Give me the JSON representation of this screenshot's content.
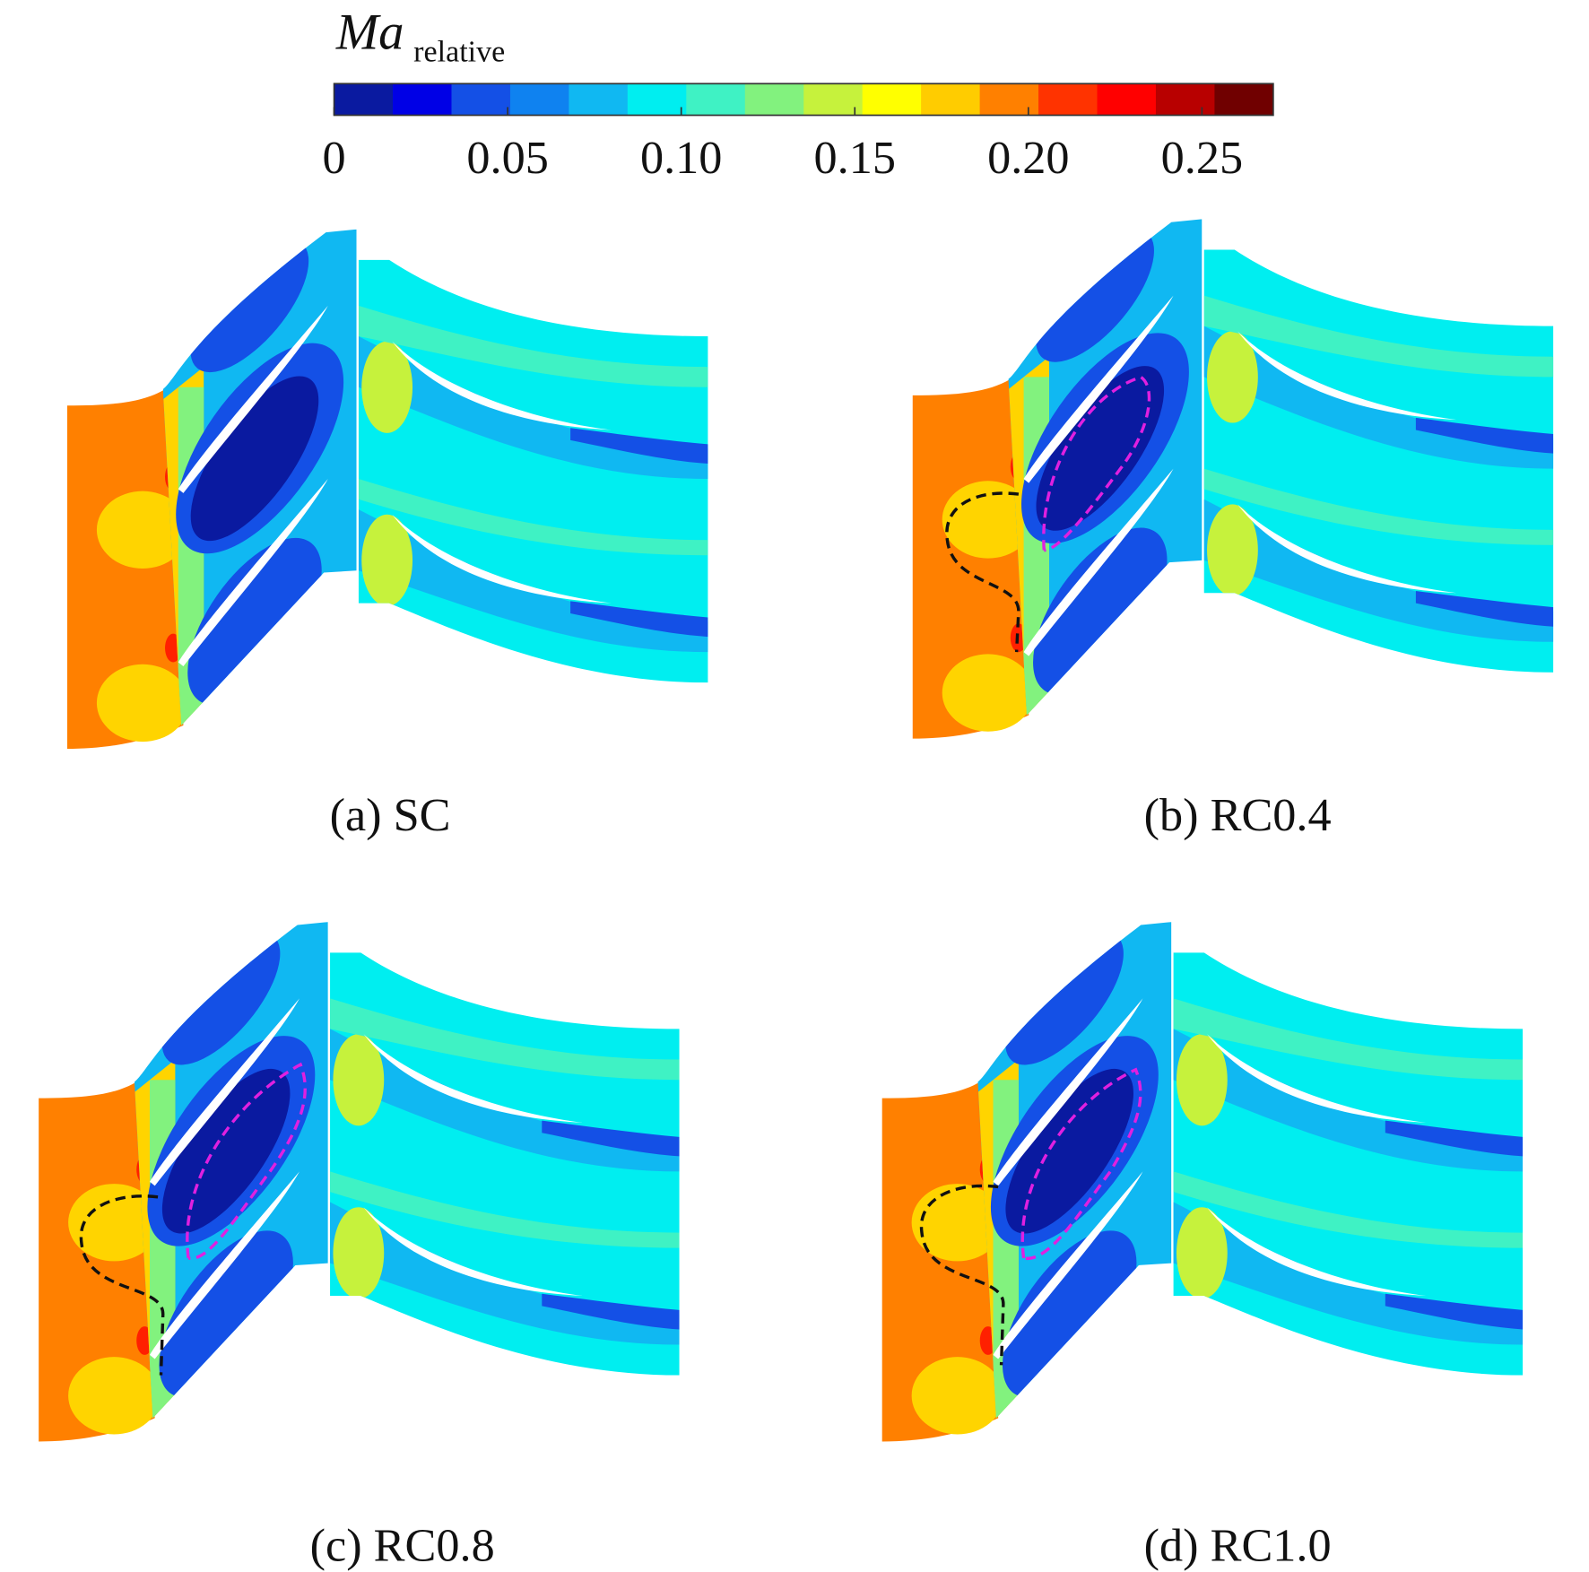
{
  "colorbar": {
    "title": "Ma",
    "subscript": "relative",
    "ticks": [
      "0",
      "0.05",
      "0.10",
      "0.15",
      "0.20",
      "0.25"
    ],
    "colors": [
      "#0a1aa0",
      "#0000e6",
      "#1450e6",
      "#0f82f0",
      "#10b8f2",
      "#00eef0",
      "#3ff2c4",
      "#82f27e",
      "#c6f23c",
      "#ffff00",
      "#ffcc00",
      "#ff8000",
      "#ff3300",
      "#ff0000",
      "#b80000",
      "#700000"
    ]
  },
  "panels": [
    {
      "caption": "(a) SC"
    },
    {
      "caption": "(b) RC0.4"
    },
    {
      "caption": "(c) RC0.8"
    },
    {
      "caption": "(d) RC1.0"
    }
  ]
}
